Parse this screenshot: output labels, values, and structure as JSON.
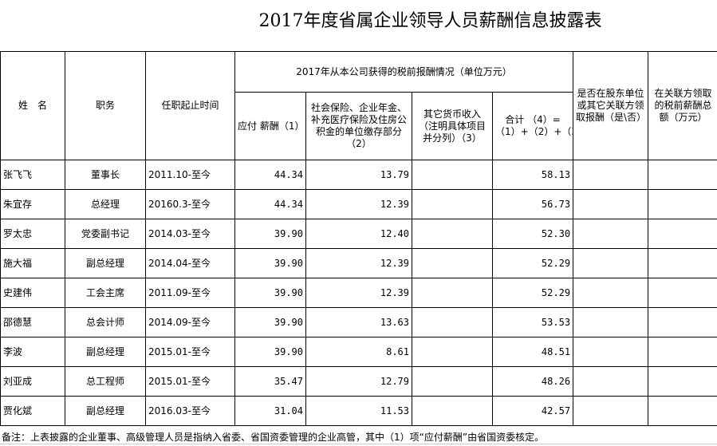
{
  "title": "2017年度省属企业领导人员薪酬信息披露表",
  "headers": {
    "name": "姓　名",
    "position": "职务",
    "tenure": "任职起止时间",
    "group": "2017年从本公司获得的税前报酬情况（单位万元）",
    "salary": "应付 薪酬（1）",
    "insurance": "社会保险、企业年金、补充医疗保险及住房公积金的单位缴存部分（2）",
    "other": "其它货币收入（注明具体项目并分列）（3）",
    "total": "合计 （4）=（1）+（2）+（3）",
    "shareholder": "是否在股东单位或其它关联方领取报酬（是\\否）",
    "related": "在关联方领取的税前薪酬总额（万元）"
  },
  "rows": [
    {
      "name": "张飞飞",
      "position": "董事长",
      "tenure": "2011.10-至今",
      "salary": "44.34",
      "insurance": "13.79",
      "other": "",
      "total": "58.13"
    },
    {
      "name": "朱宜存",
      "position": "总经理",
      "tenure": "20160.3-至今",
      "salary": "44.34",
      "insurance": "12.39",
      "other": "",
      "total": "56.73"
    },
    {
      "name": "罗太忠",
      "position": "党委副书记",
      "tenure": "2014.03-至今",
      "salary": "39.90",
      "insurance": "12.40",
      "other": "",
      "total": "52.30"
    },
    {
      "name": "施大福",
      "position": "副总经理",
      "tenure": "2014.04-至今",
      "salary": "39.90",
      "insurance": "12.39",
      "other": "",
      "total": "52.29"
    },
    {
      "name": "史建伟",
      "position": "工会主席",
      "tenure": "2011.09-至今",
      "salary": "39.90",
      "insurance": "12.39",
      "other": "",
      "total": "52.29"
    },
    {
      "name": "邵德慧",
      "position": "总会计师",
      "tenure": "2014.09-至今",
      "salary": "39.90",
      "insurance": "13.63",
      "other": "",
      "total": "53.53"
    },
    {
      "name": "李波",
      "position": "副总经理",
      "tenure": "2015.01-至今",
      "salary": "39.90",
      "insurance": "8.61",
      "other": "",
      "total": "48.51"
    },
    {
      "name": "刘亚成",
      "position": "总工程师",
      "tenure": "2015.01-至今",
      "salary": "35.47",
      "insurance": "12.79",
      "other": "",
      "total": "48.26"
    },
    {
      "name": "贾化斌",
      "position": "副总经理",
      "tenure": "2016.03-至今",
      "salary": "31.04",
      "insurance": "11.53",
      "other": "",
      "total": "42.57"
    }
  ],
  "note": "备注：上表披露的企业董事、高级管理人员是指纳入省委、省国资委管理的企业高管，其中（1）项“应付薪酬”由省国资委核定。"
}
